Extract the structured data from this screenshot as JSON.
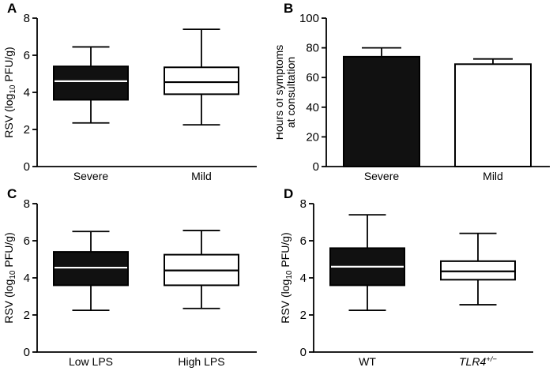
{
  "figure": {
    "background": "#ffffff",
    "panels": [
      "A",
      "B",
      "C",
      "D"
    ]
  },
  "colors": {
    "filled": "#111111",
    "open": "#ffffff",
    "axis": "#000000",
    "median_on_filled": "#ffffff"
  },
  "chart_data": [
    {
      "panel": "A",
      "type": "box",
      "ylabel_lines": [
        "RSV (log~10~ PFU/g)"
      ],
      "ylim": [
        0,
        8
      ],
      "yticks": [
        0,
        2,
        4,
        6,
        8
      ],
      "categories": [
        {
          "label": "Severe"
        },
        {
          "label": "Mild"
        }
      ],
      "boxes": [
        {
          "category": "Severe",
          "min": 2.35,
          "q1": 3.6,
          "median": 4.6,
          "q3": 5.4,
          "max": 6.45,
          "fill": "black"
        },
        {
          "category": "Mild",
          "min": 2.25,
          "q1": 3.9,
          "median": 4.55,
          "q3": 5.35,
          "max": 7.4,
          "fill": "white"
        }
      ]
    },
    {
      "panel": "B",
      "type": "bar",
      "ylabel_lines": [
        "Hours of symptoms",
        "at consultation"
      ],
      "ylim": [
        0,
        100
      ],
      "yticks": [
        0,
        20,
        40,
        60,
        80,
        100
      ],
      "categories": [
        {
          "label": "Severe"
        },
        {
          "label": "Mild"
        }
      ],
      "bars": [
        {
          "category": "Severe",
          "value": 74,
          "error_top": 80,
          "fill": "black"
        },
        {
          "category": "Mild",
          "value": 69,
          "error_top": 72.5,
          "fill": "white"
        }
      ]
    },
    {
      "panel": "C",
      "type": "box",
      "ylabel_lines": [
        "RSV (log~10~ PFU/g)"
      ],
      "ylim": [
        0,
        8
      ],
      "yticks": [
        0,
        2,
        4,
        6,
        8
      ],
      "categories": [
        {
          "label": "Low LPS"
        },
        {
          "label": "High LPS"
        }
      ],
      "boxes": [
        {
          "category": "Low LPS",
          "min": 2.25,
          "q1": 3.6,
          "median": 4.55,
          "q3": 5.4,
          "max": 6.5,
          "fill": "black"
        },
        {
          "category": "High LPS",
          "min": 2.35,
          "q1": 3.6,
          "median": 4.4,
          "q3": 5.25,
          "max": 6.55,
          "fill": "white"
        }
      ]
    },
    {
      "panel": "D",
      "type": "box",
      "ylabel_lines": [
        "RSV (log~10~ PFU/g)"
      ],
      "ylim": [
        0,
        8
      ],
      "yticks": [
        0,
        2,
        4,
        6,
        8
      ],
      "categories": [
        {
          "label": "WT"
        },
        {
          "label": "TLR4",
          "sup": "+/−",
          "italic": true
        }
      ],
      "boxes": [
        {
          "category": "WT",
          "min": 2.25,
          "q1": 3.6,
          "median": 4.6,
          "q3": 5.6,
          "max": 7.4,
          "fill": "black"
        },
        {
          "category": "TLR4+/−",
          "min": 2.55,
          "q1": 3.9,
          "median": 4.35,
          "q3": 4.9,
          "max": 6.4,
          "fill": "white"
        }
      ]
    }
  ]
}
